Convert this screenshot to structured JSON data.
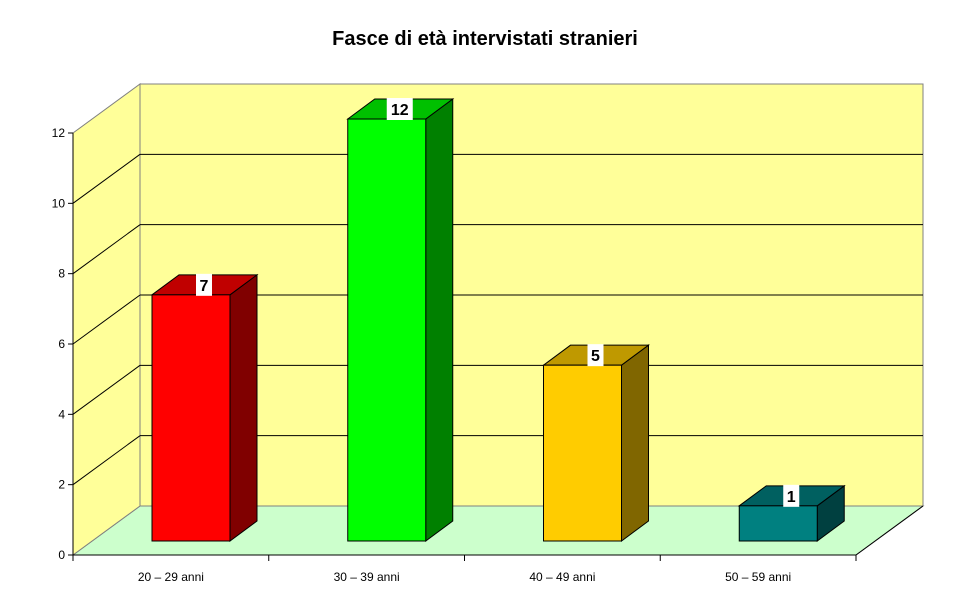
{
  "chart_data": {
    "type": "bar",
    "title": "Fasce di età intervistati stranieri",
    "categories": [
      "20 – 29 anni",
      "30 – 39 anni",
      "40 – 49 anni",
      "50 – 59 anni"
    ],
    "values": [
      7,
      12,
      5,
      1
    ],
    "xlabel": "",
    "ylabel": "",
    "ylim": [
      0,
      12
    ],
    "yticks": [
      0,
      2,
      4,
      6,
      8,
      10,
      12
    ],
    "grid": true,
    "legend": null,
    "style": "3d-column",
    "colors": {
      "bars": [
        "#FF0000",
        "#00FF00",
        "#FFCC00",
        "#008080"
      ],
      "bar_sides": [
        "#800000",
        "#008000",
        "#806600",
        "#004040"
      ],
      "bar_tops": [
        "#C00000",
        "#00C000",
        "#BF9900",
        "#006060"
      ],
      "wall": "#FFFF99",
      "floor": "#CCFFCC"
    }
  }
}
